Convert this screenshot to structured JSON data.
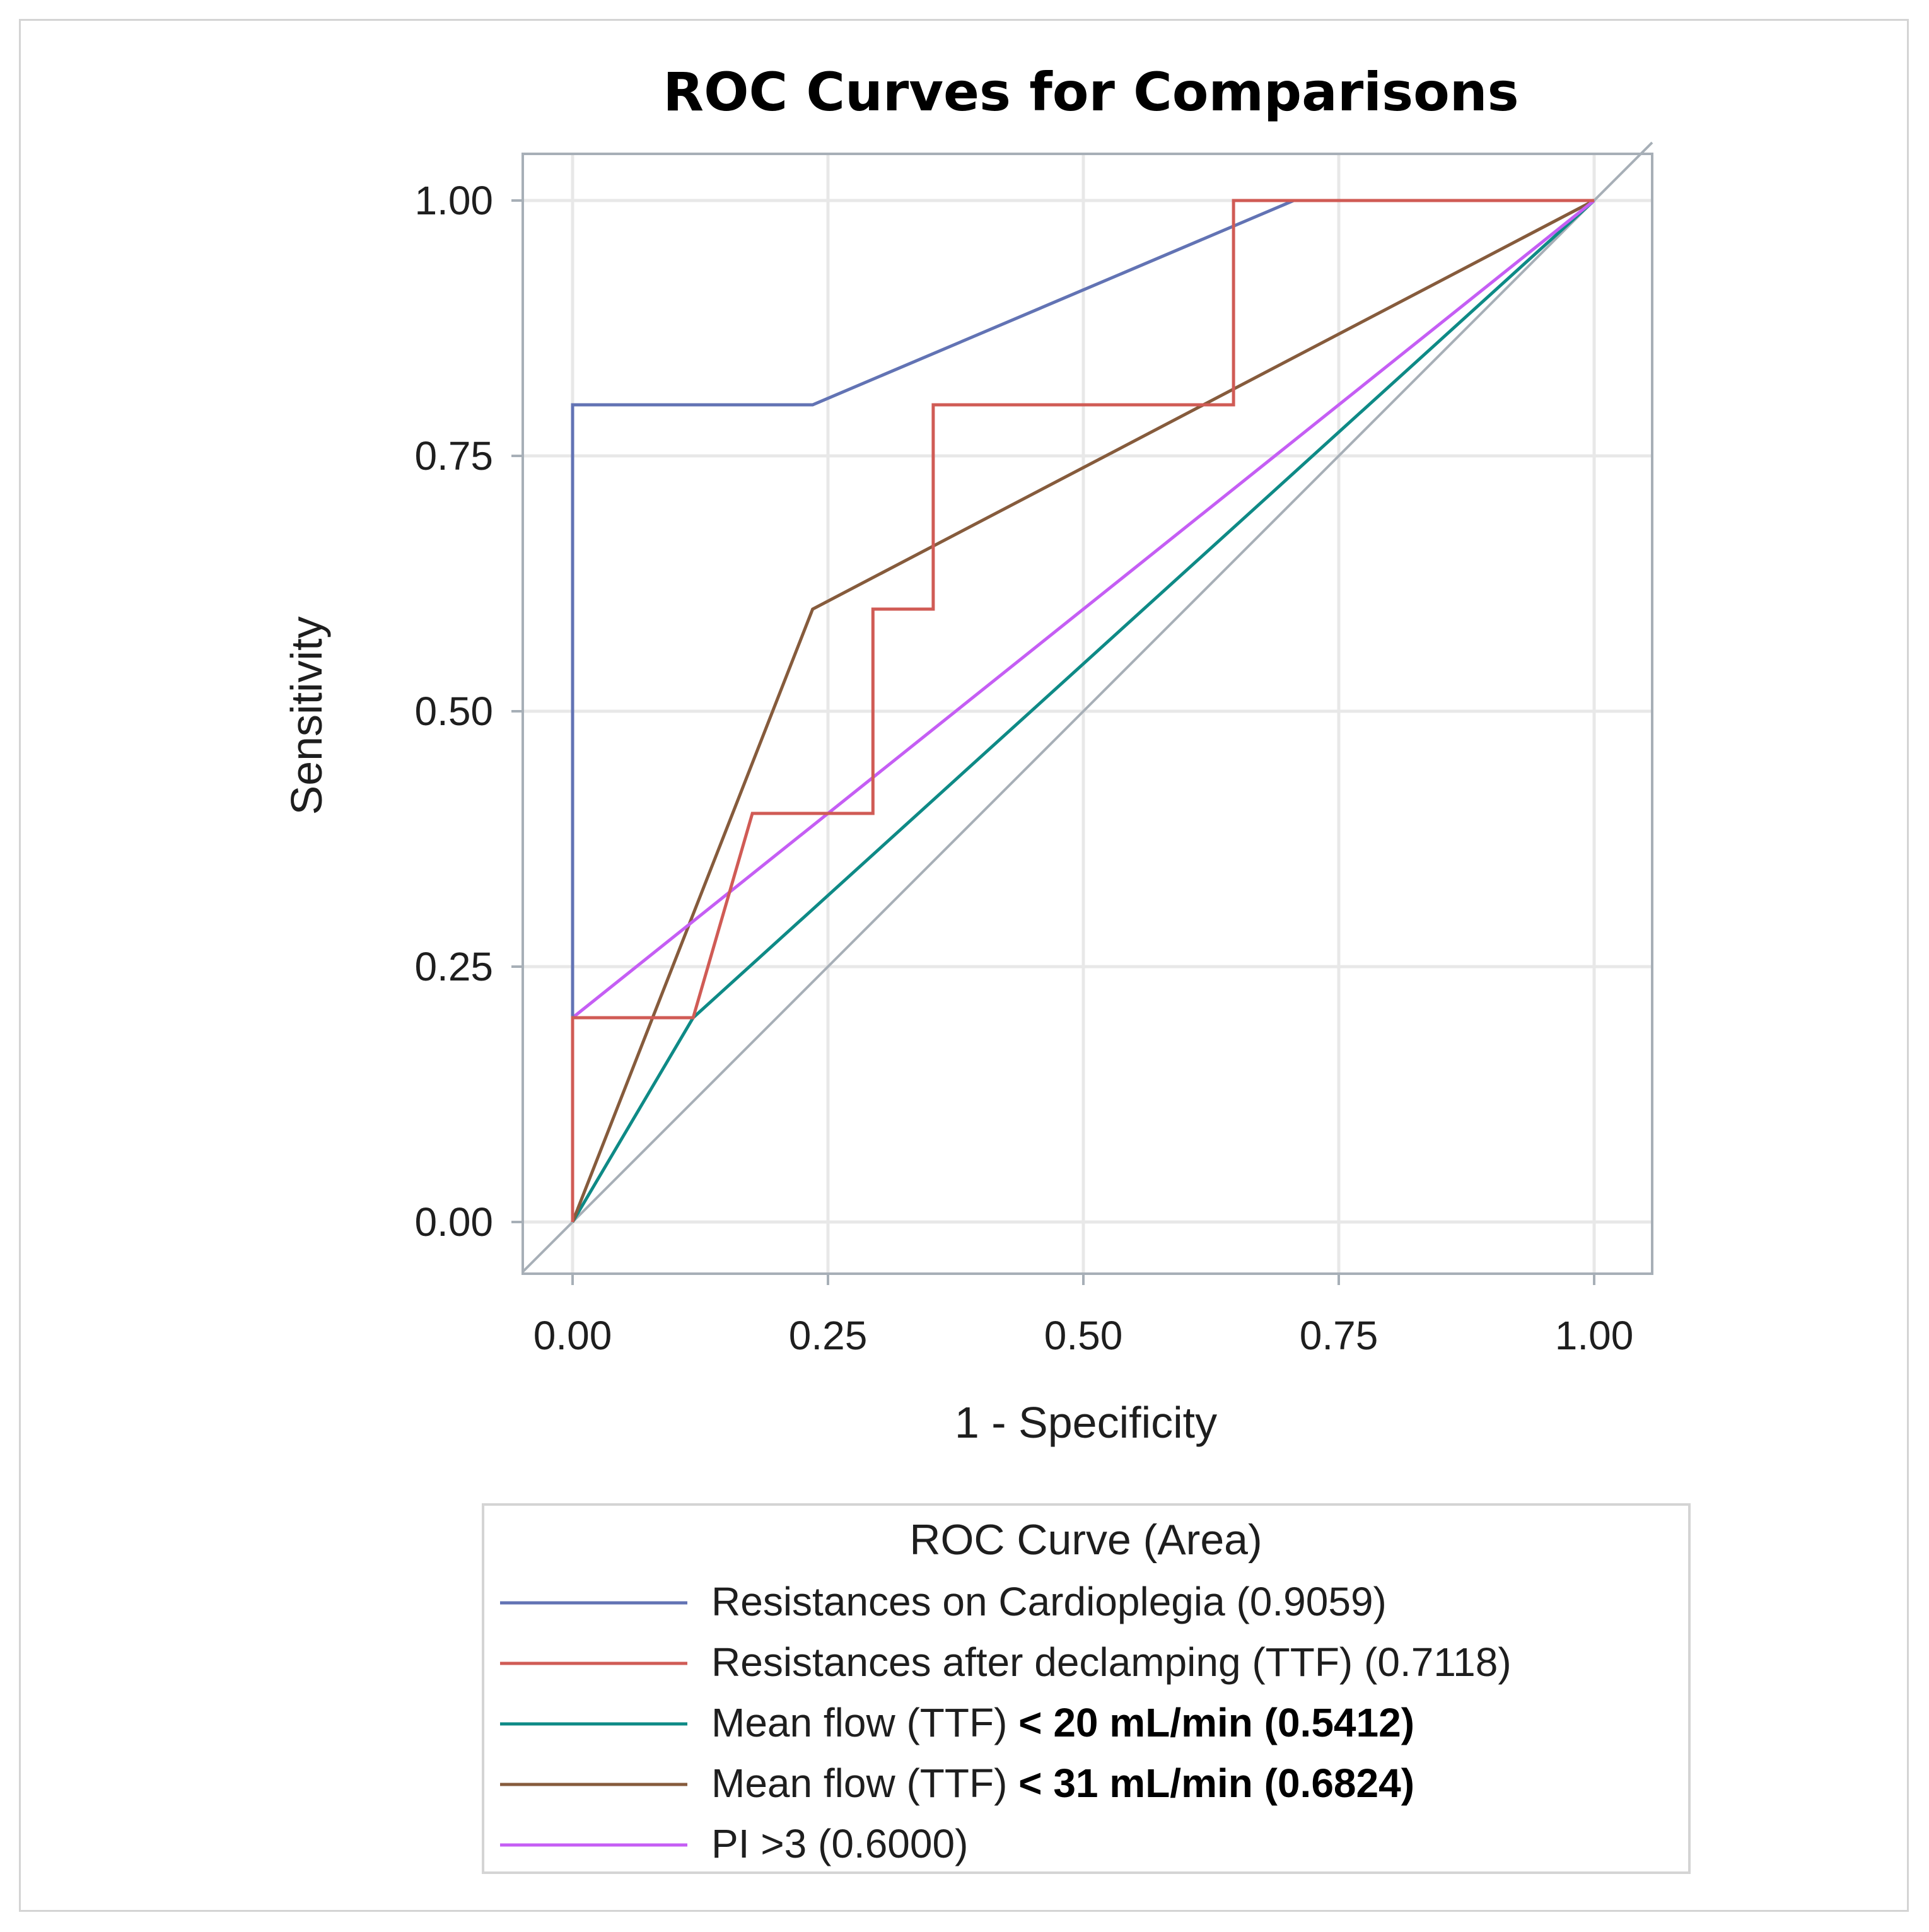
{
  "chart_data": {
    "type": "line",
    "title": "ROC Curves for Comparisons",
    "xlabel": "1 - Specificity",
    "ylabel": "Sensitivity",
    "xlim": [
      0,
      1
    ],
    "ylim": [
      0,
      1
    ],
    "xticks": [
      "0.00",
      "0.25",
      "0.50",
      "0.75",
      "1.00"
    ],
    "yticks": [
      "0.00",
      "0.25",
      "0.50",
      "0.75",
      "1.00"
    ],
    "grid": true,
    "legend_title": "ROC Curve (Area)",
    "legend_position": "bottom",
    "diagonal_color": "#a7afb7",
    "series": [
      {
        "name": "Resistances on Cardioplegia",
        "label_main": "Resistances on Cardioplegia  (0.9059)",
        "label_bold": "",
        "color": "#6273b4",
        "x": [
          0,
          0,
          0.235,
          0.706,
          1
        ],
        "y": [
          0,
          0.8,
          0.8,
          1,
          1
        ]
      },
      {
        "name": "Resistances after declamping (TTF)",
        "label_main": "Resistances after declamping (TTF)  (0.7118)",
        "label_bold": "",
        "color": "#d05b55",
        "x": [
          0,
          0,
          0.118,
          0.176,
          0.294,
          0.294,
          0.353,
          0.353,
          0.647,
          0.647,
          1
        ],
        "y": [
          0,
          0.2,
          0.2,
          0.4,
          0.4,
          0.6,
          0.6,
          0.8,
          0.8,
          1,
          1
        ]
      },
      {
        "name": "Mean flow (TTF) < 20 mL/min",
        "label_main": "Mean flow (TTF)",
        "label_bold": "< 20 mL/min (0.5412)",
        "color": "#0e8a86",
        "x": [
          0,
          0.118,
          1
        ],
        "y": [
          0,
          0.2,
          1
        ]
      },
      {
        "name": "Mean flow (TTF) < 31 mL/min",
        "label_main": "Mean flow (TTF)",
        "label_bold": "< 31 mL/min (0.6824)",
        "color": "#865b3c",
        "x": [
          0,
          0.235,
          1
        ],
        "y": [
          0,
          0.6,
          1
        ]
      },
      {
        "name": "PI >3",
        "label_main": "PI >3  (0.6000)",
        "label_bold": "",
        "color": "#c55ef4",
        "x": [
          0,
          0,
          1
        ],
        "y": [
          0,
          0.2,
          1
        ]
      }
    ]
  }
}
